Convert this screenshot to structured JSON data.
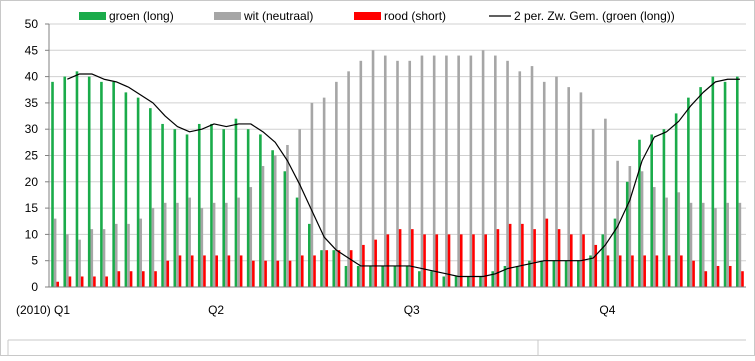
{
  "chart_data": {
    "type": "bar",
    "title": "",
    "xlabel": "",
    "ylabel": "",
    "ylim": [
      0,
      50
    ],
    "y_ticks": [
      0,
      5,
      10,
      15,
      20,
      25,
      30,
      35,
      40,
      45,
      50
    ],
    "grid": true,
    "legend_position": "top",
    "x_tick_labels": [
      "(2010) Q1",
      "Q2",
      "Q3",
      "Q4"
    ],
    "x_tick_label_index": [
      0,
      13,
      29,
      45
    ],
    "series": [
      {
        "name": "groen (long)",
        "color": "#1aab4a",
        "values": [
          39,
          40,
          41,
          40,
          39,
          39,
          37,
          36,
          34,
          31,
          30,
          29,
          31,
          31,
          30,
          32,
          30,
          29,
          26,
          22,
          17,
          12,
          7,
          7,
          4,
          4,
          4,
          4,
          4,
          4,
          3,
          3,
          2,
          2,
          2,
          2,
          3,
          4,
          4,
          5,
          5,
          5,
          5,
          5,
          6,
          10,
          13,
          20,
          28,
          29,
          30,
          33,
          36,
          38,
          40,
          39,
          40
        ]
      },
      {
        "name": "wit (neutraal)",
        "color": "#a6a6a6",
        "values": [
          13,
          10,
          9,
          11,
          11,
          12,
          12,
          13,
          15,
          16,
          16,
          17,
          15,
          16,
          16,
          17,
          19,
          23,
          25,
          27,
          30,
          35,
          36,
          39,
          41,
          43,
          45,
          44,
          43,
          43,
          44,
          44,
          44,
          44,
          44,
          45,
          44,
          43,
          41,
          42,
          39,
          40,
          38,
          37,
          30,
          32,
          24,
          23,
          22,
          19,
          17,
          18,
          16,
          16,
          15,
          16,
          16
        ]
      },
      {
        "name": "rood (short)",
        "color": "#ff0000",
        "values": [
          1,
          2,
          2,
          2,
          2,
          3,
          3,
          3,
          3,
          5,
          6,
          6,
          6,
          6,
          6,
          6,
          5,
          5,
          5,
          5,
          6,
          6,
          7,
          7,
          7,
          8,
          9,
          10,
          11,
          11,
          10,
          10,
          10,
          10,
          10,
          10,
          11,
          12,
          12,
          11,
          13,
          11,
          10,
          10,
          8,
          6,
          6,
          6,
          6,
          6,
          6,
          6,
          5,
          3,
          4,
          4,
          3
        ]
      },
      {
        "name": "2 per. Zw. Gem. (groen (long))",
        "color": "#000000",
        "type": "line",
        "values": [
          null,
          39.5,
          40.5,
          40.5,
          39.5,
          39,
          38,
          36.5,
          35,
          32.5,
          30.5,
          29.5,
          30,
          31,
          30.5,
          31,
          31,
          29.5,
          27.5,
          24,
          19.5,
          14.5,
          9.5,
          7,
          5.5,
          4,
          4,
          4,
          4,
          4,
          3.5,
          3,
          2.5,
          2,
          2,
          2,
          2.5,
          3.5,
          4,
          4.5,
          5,
          5,
          5,
          5,
          5.5,
          8,
          11.5,
          16.5,
          24,
          28.5,
          29.5,
          31.5,
          34.5,
          37,
          39,
          39.5,
          39.5
        ]
      }
    ]
  }
}
